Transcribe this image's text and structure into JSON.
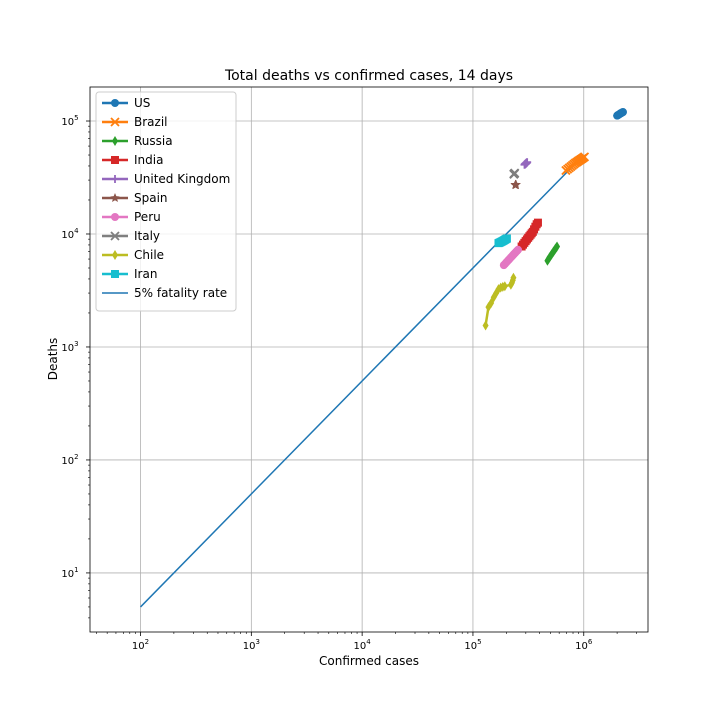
{
  "chart_data": {
    "type": "scatter",
    "title": "Total deaths vs confirmed cases, 14 days",
    "xlabel": "Confirmed cases",
    "ylabel": "Deaths",
    "xscale": "log",
    "yscale": "log",
    "xlim": [
      35,
      3800000
    ],
    "ylim": [
      3.0,
      200000
    ],
    "xticks": [
      100,
      1000,
      10000,
      100000,
      1000000
    ],
    "xtick_labels": [
      "10^2",
      "10^3",
      "10^4",
      "10^5",
      "10^6"
    ],
    "yticks": [
      10,
      100,
      1000,
      10000,
      100000
    ],
    "ytick_labels": [
      "10^1",
      "10^2",
      "10^3",
      "10^4",
      "10^5"
    ],
    "grid": true,
    "legend_position": "top-left",
    "series": [
      {
        "name": "US",
        "color": "#1f77b4",
        "marker": "circle",
        "x": [
          2000000,
          2020000,
          2040000,
          2060000,
          2080000,
          2100000,
          2120000,
          2140000,
          2160000,
          2180000,
          2200000,
          2220000,
          2240000,
          2260000
        ],
        "y": [
          111500,
          112200,
          112900,
          113600,
          114300,
          115000,
          115700,
          116400,
          117100,
          117700,
          118300,
          118900,
          119500,
          120100
        ]
      },
      {
        "name": "Brazil",
        "color": "#ff7f0e",
        "marker": "x",
        "x": [
          690000,
          715000,
          740000,
          765000,
          790000,
          815000,
          840000,
          865000,
          890000,
          915000,
          940000,
          965000,
          990000,
          1015000
        ],
        "y": [
          36500,
          37500,
          38500,
          39500,
          40500,
          41500,
          42500,
          43300,
          44100,
          44900,
          45700,
          46500,
          47300,
          48100
        ]
      },
      {
        "name": "Russia",
        "color": "#2ca02c",
        "marker": "diamond",
        "x": [
          470000,
          478000,
          486000,
          494000,
          502000,
          510000,
          518000,
          526000,
          534000,
          542000,
          550000,
          558000,
          566000,
          574000
        ],
        "y": [
          5800,
          5950,
          6100,
          6250,
          6400,
          6550,
          6700,
          6850,
          7000,
          7150,
          7300,
          7450,
          7600,
          7750
        ]
      },
      {
        "name": "India",
        "color": "#d62728",
        "marker": "square",
        "x": [
          275000,
          283000,
          291000,
          299000,
          307000,
          315000,
          323000,
          331000,
          339000,
          347000,
          356000,
          366000,
          376000,
          386000
        ],
        "y": [
          7750,
          8050,
          8350,
          8650,
          8950,
          9250,
          9550,
          9850,
          10150,
          10450,
          11000,
          11600,
          12200,
          12600
        ]
      },
      {
        "name": "United Kingdom",
        "color": "#9467bd",
        "marker": "plus",
        "x": [
          292000,
          293500,
          295000,
          296500,
          298000,
          299500,
          301000,
          302500,
          304000,
          305500,
          307000,
          308500
        ],
        "y": [
          41000,
          41200,
          41400,
          41600,
          41800,
          42000,
          42200,
          42400,
          42600,
          42800,
          43000,
          43200
        ]
      },
      {
        "name": "Spain",
        "color": "#8c564b",
        "marker": "star",
        "x": [
          241000,
          241400,
          241800,
          242200,
          242600,
          243000,
          243400,
          243800,
          244200,
          244600
        ],
        "y": [
          27100,
          27130,
          27150,
          27170,
          27190,
          27210,
          27230,
          27250,
          27270,
          27290
        ]
      },
      {
        "name": "Peru",
        "color": "#e377c2",
        "marker": "circle",
        "x": [
          190000,
          195000,
          200000,
          205000,
          210000,
          215000,
          220000,
          225000,
          230000,
          235000,
          240000,
          245000,
          250000,
          255000
        ],
        "y": [
          5300,
          5450,
          5600,
          5750,
          5900,
          6050,
          6200,
          6350,
          6500,
          6650,
          6800,
          6950,
          7100,
          7250
        ]
      },
      {
        "name": "Italy",
        "color": "#7f7f7f",
        "marker": "x",
        "x": [
          234000,
          234500,
          235000,
          235500,
          236000,
          236500,
          237000,
          237500,
          238000
        ],
        "y": [
          33800,
          33900,
          34000,
          34100,
          34200,
          34300,
          34400,
          34500,
          34600
        ]
      },
      {
        "name": "Chile",
        "color": "#bcbd22",
        "marker": "diamond",
        "x": [
          130000,
          138000,
          146000,
          154000,
          162000,
          170000,
          178000,
          186000,
          194000,
          220000,
          225000,
          229000,
          232000
        ],
        "y": [
          1550,
          2250,
          2450,
          2750,
          3000,
          3250,
          3350,
          3400,
          3450,
          3550,
          3700,
          3900,
          4100
        ]
      },
      {
        "name": "Iran",
        "color": "#17becf",
        "marker": "square",
        "x": [
          170000,
          172500,
          175000,
          177500,
          180000,
          182500,
          185000,
          187500,
          190000,
          192500,
          195000,
          197500,
          200000,
          202500
        ],
        "y": [
          8300,
          8350,
          8400,
          8460,
          8520,
          8580,
          8640,
          8700,
          8770,
          8840,
          8910,
          8980,
          9050,
          9120
        ]
      }
    ],
    "reference_line": {
      "name": "5% fatality rate",
      "color": "#1f77b4",
      "rate": 0.05,
      "x": [
        100,
        800000
      ]
    }
  }
}
